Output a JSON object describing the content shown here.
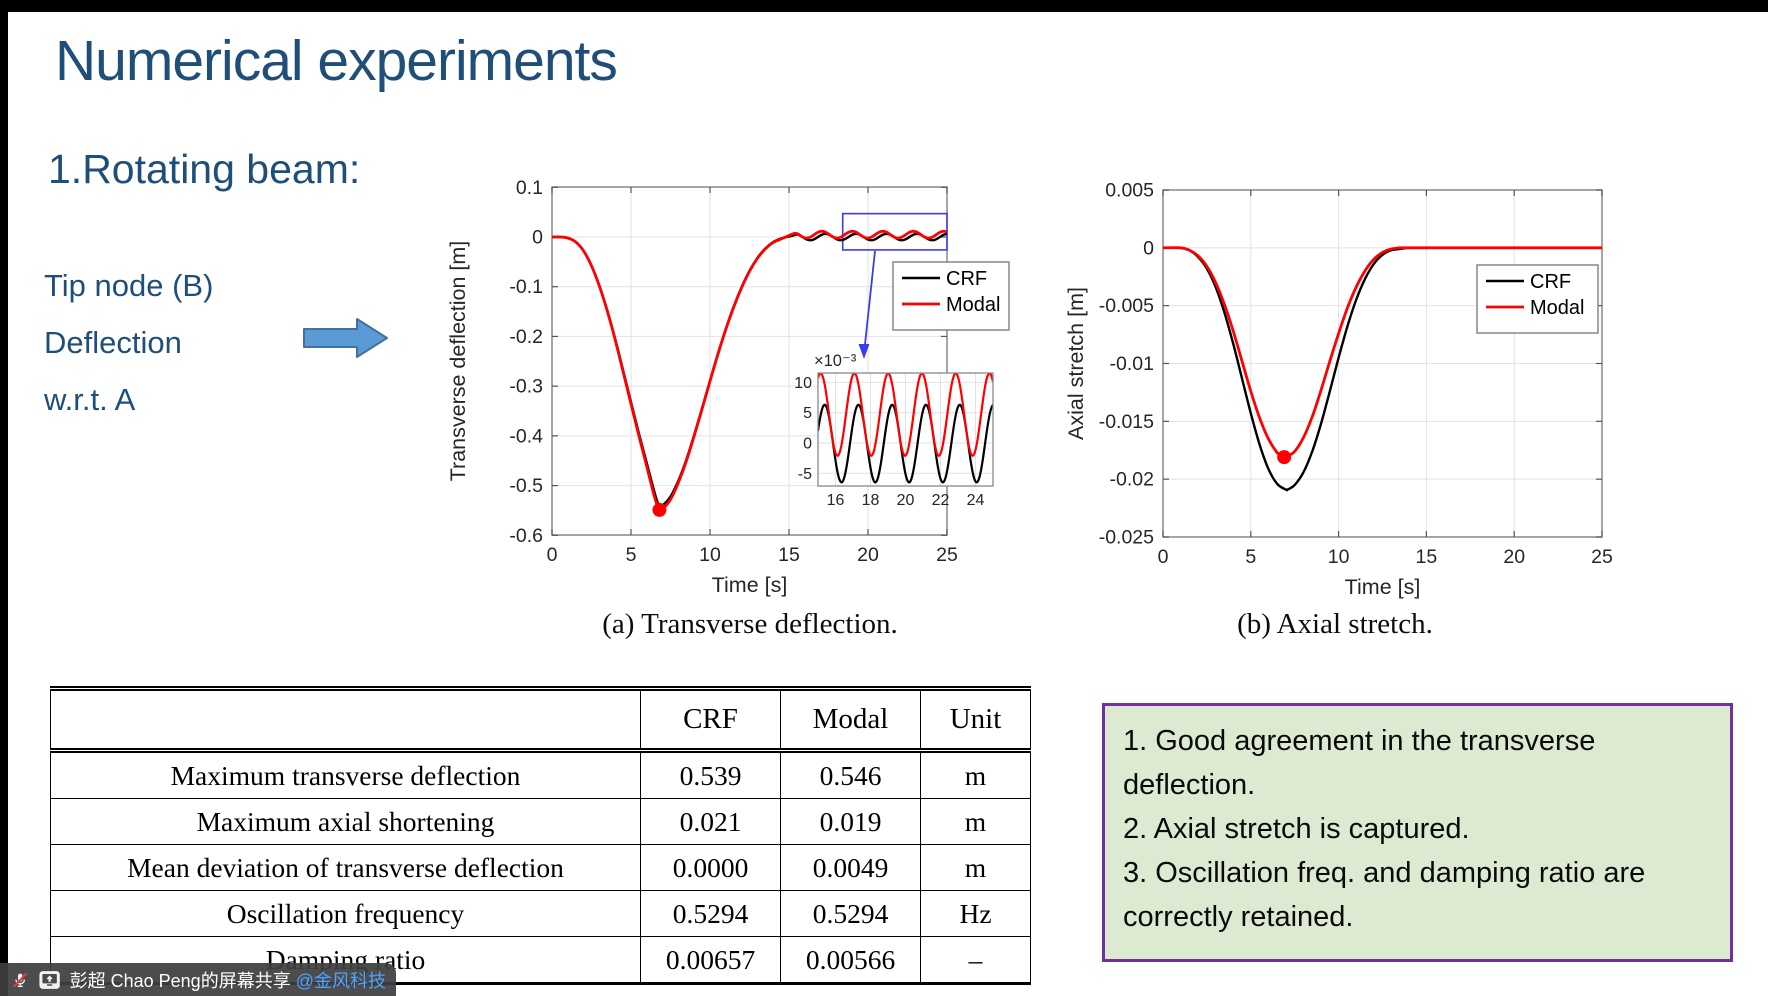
{
  "slide": {
    "title": "Numerical experiments"
  },
  "left_panel": {
    "heading": "1.Rotating beam:",
    "items": [
      "Tip node (B)",
      "Deflection",
      "w.r.t. A"
    ]
  },
  "captions": {
    "a": "(a) Transverse deflection.",
    "b": "(b) Axial stretch."
  },
  "table": {
    "headers": [
      "",
      "CRF",
      "Modal",
      "Unit"
    ],
    "rows": [
      [
        "Maximum transverse deflection",
        "0.539",
        "0.546",
        "m"
      ],
      [
        "Maximum axial shortening",
        "0.021",
        "0.019",
        "m"
      ],
      [
        "Mean deviation of transverse deflection",
        "0.0000",
        "0.0049",
        "m"
      ],
      [
        "Oscillation frequency",
        "0.5294",
        "0.5294",
        "Hz"
      ],
      [
        "Damping ratio",
        "0.00657",
        "0.00566",
        "–"
      ]
    ]
  },
  "notes": {
    "items": [
      "1. Good agreement in the transverse deflection.",
      "2. Axial stretch is captured.",
      "3. Oscillation freq. and damping ratio are correctly retained."
    ]
  },
  "share_bar": {
    "name_text": "彭超 Chao Peng的屏幕共享",
    "mention": "@金风科技",
    "icons": [
      "mic-muted-icon",
      "screen-share-icon"
    ]
  },
  "colors": {
    "title_blue": "#1f4e79",
    "arrow_fill": "#5b9bd5",
    "arrow_stroke": "#41719c",
    "crf": "#000000",
    "modal": "#ff0000",
    "annotation_blue": "#3b3bee",
    "note_bg": "#dcead2",
    "note_border": "#7030a0",
    "mention_blue": "#4da3ff",
    "grid": "#e2e2e2",
    "axis_box": "#808080"
  },
  "chart_data": [
    {
      "id": "transverse_deflection",
      "type": "line",
      "title": "",
      "xlabel": "Time [s]",
      "ylabel": "Transverse deflection [m]",
      "xlim": [
        0,
        25
      ],
      "ylim": [
        -0.6,
        0.1
      ],
      "xticks": [
        0,
        5,
        10,
        15,
        20,
        25
      ],
      "yticks": [
        0.1,
        0,
        -0.1,
        -0.2,
        -0.3,
        -0.4,
        -0.5,
        -0.6
      ],
      "grid": true,
      "legend": {
        "position": "upper right",
        "entries": [
          {
            "label": "CRF",
            "color": "#000000"
          },
          {
            "label": "Modal",
            "color": "#ff0000"
          }
        ]
      },
      "series": [
        {
          "name": "CRF",
          "color": "#000000",
          "width": 2.4,
          "x": [
            0,
            0.5,
            1,
            1.5,
            2,
            2.5,
            3,
            3.5,
            4,
            4.5,
            5,
            5.5,
            6,
            6.5,
            6.8,
            7,
            7.5,
            8,
            8.5,
            9,
            9.5,
            10,
            10.5,
            11,
            11.5,
            12,
            12.5,
            13,
            13.5,
            14,
            14.5,
            15
          ],
          "y": [
            0,
            0,
            -0.002,
            -0.01,
            -0.028,
            -0.058,
            -0.098,
            -0.148,
            -0.205,
            -0.268,
            -0.332,
            -0.395,
            -0.455,
            -0.515,
            -0.542,
            -0.54,
            -0.522,
            -0.49,
            -0.448,
            -0.398,
            -0.344,
            -0.289,
            -0.235,
            -0.185,
            -0.14,
            -0.101,
            -0.068,
            -0.042,
            -0.023,
            -0.01,
            -0.003,
            0.001
          ]
        },
        {
          "name": "Modal",
          "color": "#ff0000",
          "width": 2.8,
          "x": [
            0,
            0.5,
            1,
            1.5,
            2,
            2.5,
            3,
            3.5,
            4,
            4.5,
            5,
            5.5,
            6,
            6.5,
            6.8,
            7,
            7.5,
            8,
            8.5,
            9,
            9.5,
            10,
            10.5,
            11,
            11.5,
            12,
            12.5,
            13,
            13.5,
            14,
            14.5,
            15
          ],
          "y": [
            0,
            0,
            -0.002,
            -0.01,
            -0.028,
            -0.058,
            -0.099,
            -0.149,
            -0.207,
            -0.271,
            -0.336,
            -0.4,
            -0.462,
            -0.524,
            -0.549,
            -0.547,
            -0.528,
            -0.494,
            -0.451,
            -0.4,
            -0.346,
            -0.29,
            -0.236,
            -0.186,
            -0.141,
            -0.102,
            -0.069,
            -0.043,
            -0.024,
            -0.011,
            -0.004,
            0.003
          ]
        }
      ],
      "marker": {
        "series": "Modal",
        "x": 6.8,
        "y": -0.549,
        "color": "#ff0000"
      },
      "zoom_box": {
        "t0": 18.4,
        "t1": 25,
        "v0": -0.026,
        "v1": 0.047
      }
    },
    {
      "id": "axial_stretch",
      "type": "line",
      "title": "",
      "xlabel": "Time [s]",
      "ylabel": "Axial stretch [m]",
      "xlim": [
        0,
        25
      ],
      "ylim": [
        -0.025,
        0.005
      ],
      "xticks": [
        0,
        5,
        10,
        15,
        20,
        25
      ],
      "yticks": [
        0.005,
        0,
        -0.005,
        -0.01,
        -0.015,
        -0.02,
        -0.025
      ],
      "grid": true,
      "legend": {
        "position": "upper right",
        "entries": [
          {
            "label": "CRF",
            "color": "#000000"
          },
          {
            "label": "Modal",
            "color": "#ff0000"
          }
        ]
      },
      "series": [
        {
          "name": "CRF",
          "color": "#000000",
          "width": 2.4,
          "x": [
            0,
            1,
            1.5,
            2,
            2.5,
            3,
            3.5,
            4,
            4.5,
            5,
            5.5,
            6,
            6.5,
            7,
            7.1,
            7.5,
            8,
            8.5,
            9,
            9.5,
            10,
            10.5,
            11,
            11.5,
            12,
            12.5,
            13,
            13.5,
            14,
            15,
            17,
            20,
            25
          ],
          "y": [
            0,
            0,
            -0.0002,
            -0.0008,
            -0.0018,
            -0.0034,
            -0.0056,
            -0.0083,
            -0.0113,
            -0.0143,
            -0.017,
            -0.0191,
            -0.0204,
            -0.0209,
            -0.0209,
            -0.0205,
            -0.0194,
            -0.0176,
            -0.0152,
            -0.0124,
            -0.0095,
            -0.0068,
            -0.0045,
            -0.0027,
            -0.0014,
            -0.0006,
            -0.0002,
            -0.0001,
            0,
            0,
            0,
            0,
            0
          ]
        },
        {
          "name": "Modal",
          "color": "#ff0000",
          "width": 2.8,
          "x": [
            0,
            1,
            1.5,
            2,
            2.5,
            3,
            3.5,
            4,
            4.5,
            5,
            5.5,
            6,
            6.5,
            6.9,
            7,
            7.5,
            8,
            8.5,
            9,
            9.5,
            10,
            10.5,
            11,
            11.5,
            12,
            12.5,
            13,
            13.5,
            14,
            15,
            17,
            20,
            25
          ],
          "y": [
            0,
            0,
            -0.0002,
            -0.0007,
            -0.0016,
            -0.003,
            -0.0049,
            -0.0072,
            -0.0098,
            -0.0124,
            -0.0147,
            -0.0165,
            -0.0177,
            -0.0181,
            -0.0181,
            -0.0176,
            -0.0164,
            -0.0146,
            -0.0123,
            -0.0098,
            -0.0074,
            -0.0052,
            -0.0034,
            -0.002,
            -0.001,
            -0.0004,
            -0.0001,
            0,
            0,
            0,
            0,
            0,
            0
          ]
        }
      ],
      "marker": {
        "series": "Modal",
        "x": 6.9,
        "y": -0.0181,
        "color": "#ff0000"
      }
    },
    {
      "id": "transverse_deflection_zoom_inset",
      "type": "line",
      "parent": "transverse_deflection",
      "scale_label": "×10⁻³",
      "xlim": [
        15,
        25
      ],
      "ylim": [
        -0.0072,
        0.0116
      ],
      "xticks": [
        16,
        18,
        20,
        22,
        24
      ],
      "yticks_e3": [
        10,
        5,
        0,
        -5
      ],
      "grid": true,
      "series_params": [
        {
          "name": "CRF",
          "color": "#000000",
          "mean": -0.0001,
          "amp": 0.0064,
          "period": 1.93,
          "t_peak": 15.38
        },
        {
          "name": "Modal",
          "color": "#ff0000",
          "mean": 0.0047,
          "amp": 0.0068,
          "period": 1.93,
          "t_peak": 15.15
        }
      ]
    }
  ]
}
